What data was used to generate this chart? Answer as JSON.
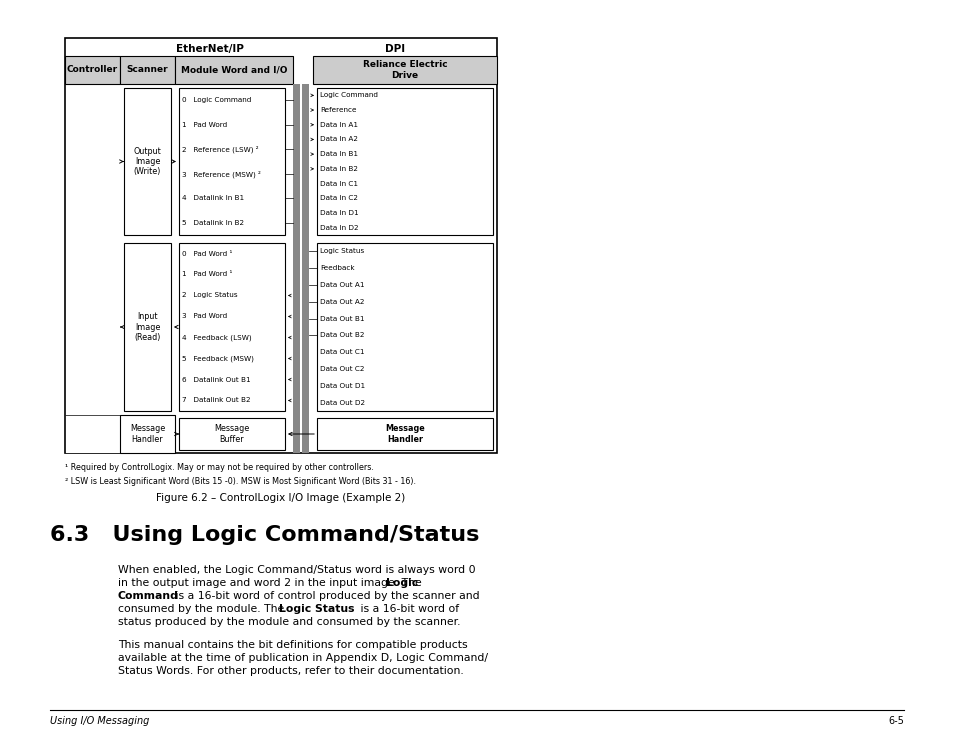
{
  "bg_color": "#ffffff",
  "ethernet_label": "EtherNet/IP",
  "dpi_label": "DPI",
  "col_labels": [
    "Controller",
    "Scanner",
    "Module Word and I/O",
    "Reliance Electric\nDrive"
  ],
  "output_items": [
    "0   Logic Command",
    "1   Pad Word",
    "2   Reference (LSW) ²",
    "3   Reference (MSW) ²",
    "4   Datalink In B1",
    "5   Datalink In B2"
  ],
  "input_items": [
    "0   Pad Word ¹",
    "1   Pad Word ¹",
    "2   Logic Status",
    "3   Pad Word",
    "4   Feedback (LSW)",
    "5   Feedback (MSW)",
    "6   Datalink Out B1",
    "7   Datalink Out B2"
  ],
  "drive_output_items": [
    "Logic Command",
    "Reference",
    "Data In A1",
    "Data In A2",
    "Data In B1",
    "Data In B2",
    "Data In C1",
    "Data In C2",
    "Data In D1",
    "Data In D2"
  ],
  "drive_input_items": [
    "Logic Status",
    "Feedback",
    "Data Out A1",
    "Data Out A2",
    "Data Out B1",
    "Data Out B2",
    "Data Out C1",
    "Data Out C2",
    "Data Out D1",
    "Data Out D2"
  ],
  "footnote1": "¹ Required by ControlLogix. May or may not be required by other controllers.",
  "footnote2": "² LSW is Least Significant Word (Bits 15 -0). MSW is Most Significant Word (Bits 31 - 16).",
  "figure_caption": "Figure 6.2 – ControlLogix I/O Image (Example 2)",
  "section_title": "6.3   Using Logic Command/Status",
  "para1_line1": "When enabled, the Logic Command/Status word is always word 0",
  "para1_line2": "in the output image and word 2 in the input image. The ",
  "para1_bold1": "Logic",
  "para1_line3": "Command",
  "para1_line4": " is a 16-bit word of control produced by the scanner and",
  "para1_line5": "consumed by the module. The ",
  "para1_bold2": "Logic Status",
  "para1_line6": " is a 16-bit word of",
  "para1_line7": "status produced by the module and consumed by the scanner.",
  "para2_line1": "This manual contains the bit definitions for compatible products",
  "para2_line2": "available at the time of publication in Appendix D, Logic Command/",
  "para2_line3": "Status Words. For other products, refer to their documentation.",
  "footer_left": "Using I/O Messaging",
  "footer_right": "6-5"
}
